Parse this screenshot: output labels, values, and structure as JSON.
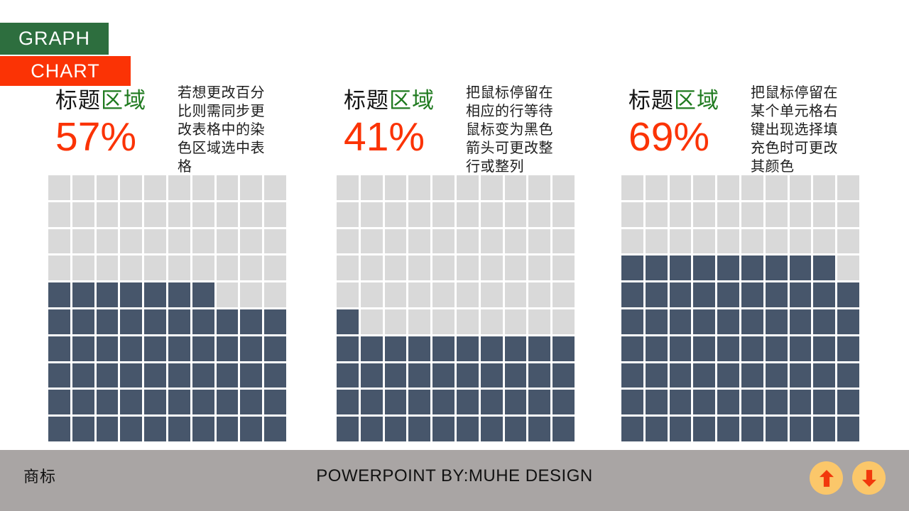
{
  "tabs": {
    "graph_label": "GRAPH",
    "chart_label": "CHART"
  },
  "charts": [
    {
      "title_black": "标题",
      "title_green": "区域",
      "percent": "57%",
      "description": "若想更改百分\n比则需同步更\n改表格中的染\n色区域选中表\n格"
    },
    {
      "title_black": "标题",
      "title_green": "区域",
      "percent": "41%",
      "description": "把鼠标停留在\n相应的行等待\n鼠标变为黑色\n箭头可更改整\n行或整列"
    },
    {
      "title_black": "标题",
      "title_green": "区域",
      "percent": "69%",
      "description": "把鼠标停留在\n某个单元格右\n键出现选择填\n充色时可更改\n其颜色"
    }
  ],
  "chart_data": [
    {
      "type": "heatmap",
      "subtype": "waffle",
      "title": "标题区域",
      "label": "57%",
      "value_percent": 57,
      "grid": {
        "rows": 10,
        "cols": 10
      },
      "filled_cells": 57,
      "fill_order": "bottom-rows-full-then-partial-row-from-left",
      "filled_color": "#47566b",
      "empty_color": "#d9d9d9"
    },
    {
      "type": "heatmap",
      "subtype": "waffle",
      "title": "标题区域",
      "label": "41%",
      "value_percent": 41,
      "grid": {
        "rows": 10,
        "cols": 10
      },
      "filled_cells": 41,
      "fill_order": "bottom-rows-full-then-partial-row-from-left",
      "filled_color": "#47566b",
      "empty_color": "#d9d9d9"
    },
    {
      "type": "heatmap",
      "subtype": "waffle",
      "title": "标题区域",
      "label": "69%",
      "value_percent": 69,
      "grid": {
        "rows": 10,
        "cols": 10
      },
      "filled_cells": 69,
      "fill_order": "bottom-rows-full-then-partial-row-from-left",
      "filled_color": "#47566b",
      "empty_color": "#d9d9d9"
    }
  ],
  "footer": {
    "left_text": "商标",
    "center_text": "POWERPOINT BY:MUHE DESIGN",
    "buttons": [
      {
        "icon": "up-arrow-icon"
      },
      {
        "icon": "down-arrow-icon"
      }
    ]
  },
  "colors": {
    "tab_green": "#2d6e3e",
    "accent_red": "#fb3305",
    "title_green": "#1f7a1f",
    "cell_filled": "#47566b",
    "cell_empty": "#d9d9d9",
    "footer_gray": "#a9a5a4",
    "btn_circle": "#fbc76a",
    "btn_arrow": "#f2380c"
  }
}
